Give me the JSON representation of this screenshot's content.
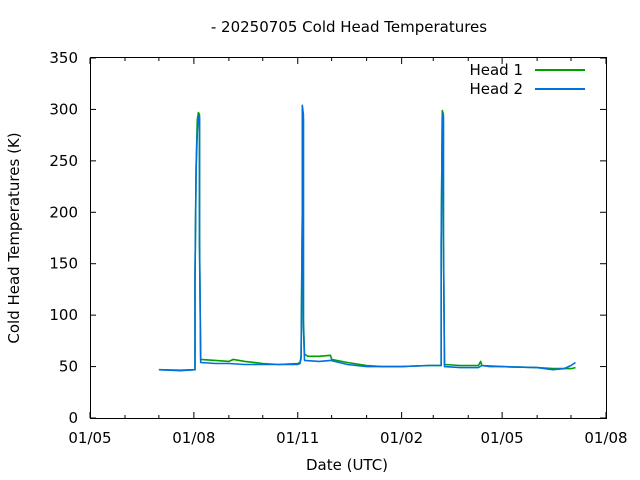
{
  "chart_data": {
    "type": "line",
    "title": "- 20250705 Cold Head Temperatures",
    "xlabel": "Date (UTC)",
    "ylabel": "Cold Head Temperatures (K)",
    "xlim": [
      "2024-05-01",
      "2025-08-01"
    ],
    "ylim": [
      0,
      350
    ],
    "yticks": [
      0,
      50,
      100,
      150,
      200,
      250,
      300,
      350
    ],
    "xticks": [
      {
        "date": "2024-05-01",
        "label": "01/05"
      },
      {
        "date": "2024-08-01",
        "label": "01/08"
      },
      {
        "date": "2024-11-01",
        "label": "01/11"
      },
      {
        "date": "2025-02-01",
        "label": "01/02"
      },
      {
        "date": "2025-05-01",
        "label": "01/05"
      },
      {
        "date": "2025-08-01",
        "label": "01/08"
      }
    ],
    "legend_position": "top-right",
    "grid": false,
    "series": [
      {
        "name": "Head 1",
        "color": "#00a000",
        "points": [
          [
            "2024-07-01",
            47
          ],
          [
            "2024-07-20",
            46.5
          ],
          [
            "2024-08-02",
            47
          ],
          [
            "2024-08-02",
            135
          ],
          [
            "2024-08-03",
            245
          ],
          [
            "2024-08-04",
            290
          ],
          [
            "2024-08-05",
            297
          ],
          [
            "2024-08-06",
            295
          ],
          [
            "2024-08-06",
            175
          ],
          [
            "2024-08-07",
            57
          ],
          [
            "2024-08-20",
            56
          ],
          [
            "2024-09-01",
            55
          ],
          [
            "2024-09-05",
            57
          ],
          [
            "2024-09-15",
            55
          ],
          [
            "2024-10-01",
            53
          ],
          [
            "2024-10-15",
            52
          ],
          [
            "2024-11-01",
            53
          ],
          [
            "2024-11-03",
            54
          ],
          [
            "2024-11-04",
            60
          ],
          [
            "2024-11-05",
            200
          ],
          [
            "2024-11-05",
            302
          ],
          [
            "2024-11-06",
            290
          ],
          [
            "2024-11-06",
            200
          ],
          [
            "2024-11-06",
            95
          ],
          [
            "2024-11-07",
            62
          ],
          [
            "2024-11-10",
            60
          ],
          [
            "2024-11-20",
            60
          ],
          [
            "2024-11-30",
            61
          ],
          [
            "2024-12-01",
            57
          ],
          [
            "2024-12-15",
            54
          ],
          [
            "2025-01-01",
            51
          ],
          [
            "2025-01-15",
            50
          ],
          [
            "2025-02-01",
            50
          ],
          [
            "2025-02-25",
            51
          ],
          [
            "2025-03-08",
            51
          ],
          [
            "2025-03-08",
            170
          ],
          [
            "2025-03-09",
            299
          ],
          [
            "2025-03-10",
            295
          ],
          [
            "2025-03-10",
            175
          ],
          [
            "2025-03-11",
            52
          ],
          [
            "2025-03-25",
            51
          ],
          [
            "2025-04-10",
            51
          ],
          [
            "2025-04-12",
            55
          ],
          [
            "2025-04-13",
            51
          ],
          [
            "2025-05-01",
            50
          ],
          [
            "2025-06-01",
            49
          ],
          [
            "2025-06-15",
            48
          ],
          [
            "2025-07-01",
            48
          ],
          [
            "2025-07-05",
            49
          ]
        ]
      },
      {
        "name": "Head 2",
        "color": "#0070e0",
        "points": [
          [
            "2024-07-01",
            47
          ],
          [
            "2024-07-20",
            46
          ],
          [
            "2024-08-02",
            47
          ],
          [
            "2024-08-02",
            138
          ],
          [
            "2024-08-03",
            240
          ],
          [
            "2024-08-04",
            278
          ],
          [
            "2024-08-05",
            294
          ],
          [
            "2024-08-06",
            292
          ],
          [
            "2024-08-06",
            170
          ],
          [
            "2024-08-07",
            54
          ],
          [
            "2024-08-20",
            53
          ],
          [
            "2024-09-01",
            53
          ],
          [
            "2024-09-15",
            52
          ],
          [
            "2024-10-01",
            52
          ],
          [
            "2024-10-15",
            52
          ],
          [
            "2024-11-01",
            52
          ],
          [
            "2024-11-03",
            53
          ],
          [
            "2024-11-04",
            58
          ],
          [
            "2024-11-05",
            195
          ],
          [
            "2024-11-05",
            304
          ],
          [
            "2024-11-06",
            295
          ],
          [
            "2024-11-06",
            200
          ],
          [
            "2024-11-06",
            90
          ],
          [
            "2024-11-07",
            56
          ],
          [
            "2024-11-20",
            55
          ],
          [
            "2024-11-30",
            56
          ],
          [
            "2024-12-15",
            52
          ],
          [
            "2025-01-01",
            50
          ],
          [
            "2025-01-15",
            50
          ],
          [
            "2025-02-01",
            50
          ],
          [
            "2025-02-25",
            51
          ],
          [
            "2025-03-08",
            51
          ],
          [
            "2025-03-08",
            170
          ],
          [
            "2025-03-09",
            296
          ],
          [
            "2025-03-10",
            292
          ],
          [
            "2025-03-10",
            180
          ],
          [
            "2025-03-11",
            50
          ],
          [
            "2025-03-25",
            49
          ],
          [
            "2025-04-10",
            49
          ],
          [
            "2025-04-13",
            51
          ],
          [
            "2025-04-20",
            50
          ],
          [
            "2025-05-01",
            50
          ],
          [
            "2025-06-01",
            49
          ],
          [
            "2025-06-15",
            47
          ],
          [
            "2025-06-25",
            48
          ],
          [
            "2025-07-01",
            51
          ],
          [
            "2025-07-05",
            54
          ]
        ]
      }
    ]
  }
}
